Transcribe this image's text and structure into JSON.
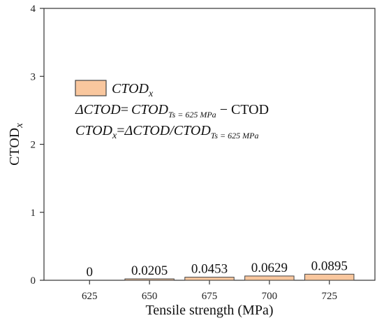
{
  "chart_data": {
    "type": "bar",
    "title": "",
    "xlabel": "Tensile strength (MPa)",
    "ylabel": {
      "main": "CTOD",
      "sub": "x"
    },
    "categories": [
      "625",
      "650",
      "675",
      "700",
      "725"
    ],
    "values": [
      0,
      0.0205,
      0.0453,
      0.0629,
      0.0895
    ],
    "data_labels": [
      "0",
      "0.0205",
      "0.0453",
      "0.0629",
      "0.0895"
    ],
    "ylim": [
      0,
      4
    ],
    "yticks": [
      "0",
      "1",
      "2",
      "3",
      "4"
    ],
    "grid": false,
    "legend_position": "upper-left",
    "legend": {
      "series_label": {
        "main": "CTOD",
        "sub": "x"
      },
      "formula1": {
        "lhs": "ΔCTOD",
        "eq": "=",
        "term": "CTOD",
        "term_sub": "Ts = 625 MPa",
        "op": " − ",
        "rhs": "CTOD"
      },
      "formula2": {
        "lhs": "CTOD",
        "lhs_sub": "x",
        "eq": "=",
        "mid": "ΔCTOD/CTOD",
        "mid_sub": "Ts = 625 MPa"
      }
    },
    "colors": {
      "bar_fill": "#f9c79e",
      "bar_stroke": "#444444",
      "axis": "#333333"
    }
  }
}
